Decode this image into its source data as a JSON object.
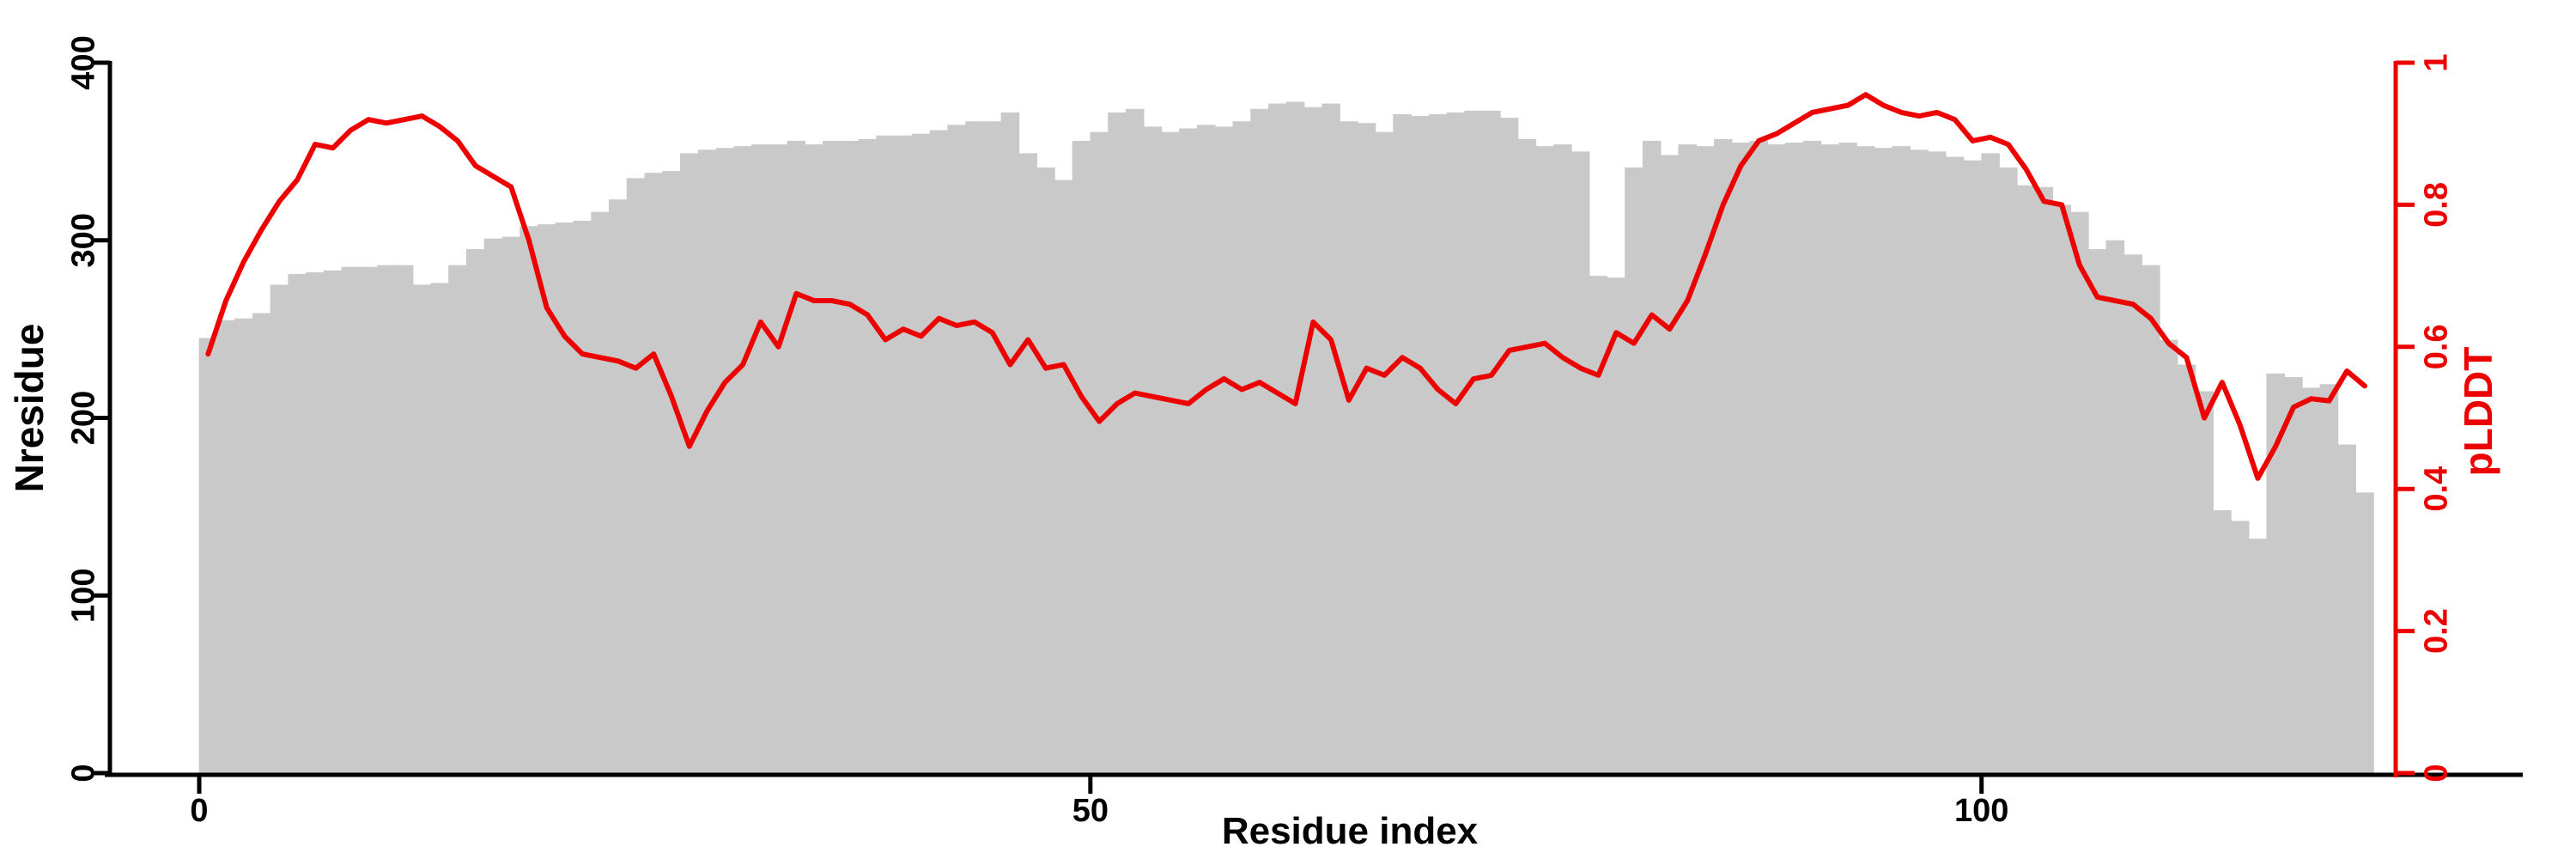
{
  "chart_data": {
    "type": "bar+line dual-axis",
    "title": "",
    "xlabel": "Residue index",
    "ylabel_left": "Nresidue",
    "ylabel_right": "pLDDT",
    "x_note": "x = residue index 0..121, one gray bar and one red line point per residue",
    "x_axis": {
      "ticks": [
        0,
        50,
        100
      ],
      "tick_labels": [
        "0",
        "50",
        "100"
      ]
    },
    "left_axis": {
      "range": [
        0,
        400
      ],
      "ticks": [
        0,
        100,
        200,
        300,
        400
      ],
      "tick_labels": [
        "0",
        "100",
        "200",
        "300",
        "400"
      ],
      "color": "#000000"
    },
    "right_axis": {
      "range": [
        0,
        1
      ],
      "ticks": [
        0,
        0.2,
        0.4,
        0.6,
        0.8,
        1
      ],
      "tick_labels": [
        "0",
        "0.2",
        "0.4",
        "0.6",
        "0.8",
        "1"
      ],
      "color": "#ec0000"
    },
    "grid": false,
    "legend": "none",
    "series": [
      {
        "name": "Nresidue",
        "type": "bar",
        "axis": "left",
        "color": "#c9c9c9",
        "values": [
          245,
          255,
          256,
          259,
          275,
          281,
          282,
          283,
          285,
          285,
          286,
          286,
          275,
          276,
          286,
          295,
          301,
          302,
          308,
          309,
          310,
          311,
          316,
          323,
          335,
          338,
          339,
          349,
          351,
          352,
          353,
          354,
          354,
          356,
          354,
          356,
          356,
          357,
          359,
          359,
          360,
          362,
          365,
          367,
          367,
          372,
          349,
          341,
          334,
          356,
          361,
          372,
          374,
          364,
          361,
          363,
          365,
          364,
          367,
          374,
          377,
          378,
          375,
          377,
          367,
          366,
          361,
          371,
          370,
          371,
          372,
          373,
          373,
          369,
          357,
          353,
          354,
          350,
          280,
          279,
          341,
          356,
          348,
          354,
          353,
          357,
          355,
          356,
          354,
          355,
          356,
          354,
          355,
          353,
          352,
          353,
          351,
          350,
          347,
          345,
          349,
          341,
          331,
          330,
          320,
          316,
          295,
          300,
          292,
          286,
          244,
          230,
          215,
          148,
          142,
          132,
          225,
          223,
          217,
          219,
          185,
          158
        ]
      },
      {
        "name": "pLDDT",
        "type": "line",
        "axis": "right",
        "color": "#ec0000",
        "values": [
          0.59,
          0.665,
          0.72,
          0.765,
          0.805,
          0.835,
          0.885,
          0.88,
          0.905,
          0.92,
          0.915,
          0.92,
          0.925,
          0.91,
          0.89,
          0.855,
          0.84,
          0.825,
          0.75,
          0.655,
          0.615,
          0.59,
          0.585,
          0.58,
          0.57,
          0.59,
          0.53,
          0.46,
          0.51,
          0.55,
          0.575,
          0.635,
          0.6,
          0.675,
          0.665,
          0.665,
          0.66,
          0.645,
          0.61,
          0.625,
          0.615,
          0.64,
          0.63,
          0.635,
          0.62,
          0.575,
          0.61,
          0.57,
          0.575,
          0.53,
          0.495,
          0.52,
          0.535,
          0.53,
          0.525,
          0.52,
          0.54,
          0.555,
          0.54,
          0.55,
          0.535,
          0.52,
          0.635,
          0.61,
          0.525,
          0.57,
          0.56,
          0.585,
          0.57,
          0.54,
          0.52,
          0.555,
          0.56,
          0.595,
          0.6,
          0.605,
          0.585,
          0.57,
          0.56,
          0.62,
          0.605,
          0.645,
          0.625,
          0.665,
          0.73,
          0.8,
          0.855,
          0.89,
          0.9,
          0.915,
          0.93,
          0.935,
          0.94,
          0.955,
          0.94,
          0.93,
          0.925,
          0.93,
          0.92,
          0.89,
          0.895,
          0.885,
          0.85,
          0.805,
          0.8,
          0.715,
          0.67,
          0.665,
          0.66,
          0.64,
          0.605,
          0.585,
          0.5,
          0.55,
          0.49,
          0.415,
          0.46,
          0.515,
          0.527,
          0.524,
          0.566,
          0.545
        ]
      }
    ]
  },
  "colors": {
    "background": "#ffffff",
    "bar_gray": "#c9c9c9",
    "accent_red": "#ec0000",
    "axis_black": "#000000"
  }
}
